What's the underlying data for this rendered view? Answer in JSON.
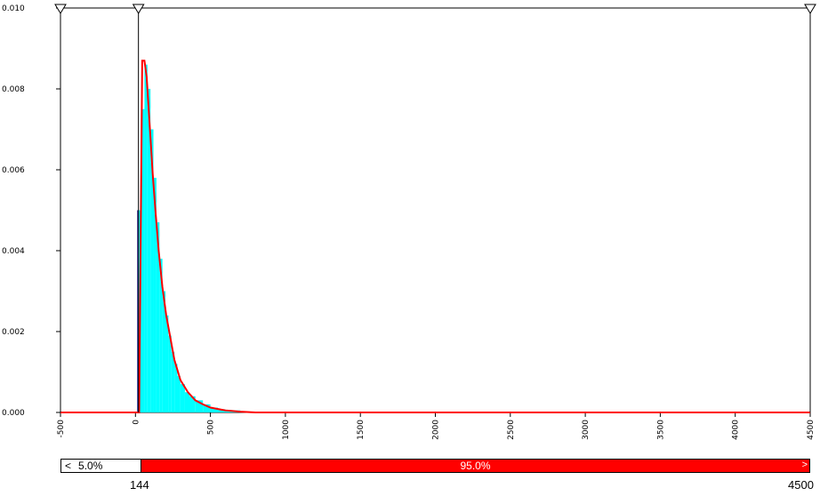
{
  "chart_data": {
    "type": "area",
    "title": "",
    "xlabel": "",
    "ylabel": "",
    "xlim": [
      -500,
      4500
    ],
    "ylim": [
      0,
      0.01
    ],
    "x_ticks": [
      "-500",
      "0",
      "500",
      "1000",
      "1500",
      "2000",
      "2500",
      "3000",
      "3500",
      "4000",
      "4500"
    ],
    "y_ticks": [
      "0.000",
      "0.002",
      "0.004",
      "0.006",
      "0.008",
      "0.010"
    ],
    "series": [
      {
        "color": "#00ffff",
        "style": "histogram",
        "x": [
          20,
          40,
          60,
          80,
          100,
          120,
          140,
          160,
          180,
          200,
          220,
          240,
          260,
          280,
          300,
          330,
          360,
          400,
          450,
          500,
          550,
          600,
          700
        ],
        "y": [
          0.005,
          0.0075,
          0.0086,
          0.008,
          0.007,
          0.0058,
          0.0047,
          0.0038,
          0.003,
          0.0024,
          0.0019,
          0.0015,
          0.0012,
          0.0009,
          0.0007,
          0.0005,
          0.0004,
          0.0003,
          0.0002,
          0.00012,
          8e-05,
          5e-05,
          2e-05
        ]
      },
      {
        "color": "#ff0000",
        "style": "line",
        "x": [
          -500,
          25,
          45,
          60,
          75,
          95,
          115,
          135,
          155,
          180,
          205,
          230,
          260,
          300,
          350,
          400,
          450,
          500,
          600,
          700,
          800,
          1000,
          4500
        ],
        "y": [
          0.0,
          0.0,
          0.0087,
          0.0087,
          0.0083,
          0.0071,
          0.0059,
          0.0049,
          0.004,
          0.0031,
          0.0024,
          0.0019,
          0.0013,
          0.0008,
          0.0005,
          0.0003,
          0.0002,
          0.00012,
          5e-05,
          2e-05,
          0.0,
          0.0,
          0.0
        ]
      }
    ],
    "markers": [
      -500,
      20,
      4500
    ],
    "range_bar": {
      "left_arrow": "<",
      "left_pct": "5.0%",
      "center_pct": "95.0%",
      "right_arrow": ">",
      "left_value": "144",
      "right_value": "4500"
    }
  }
}
